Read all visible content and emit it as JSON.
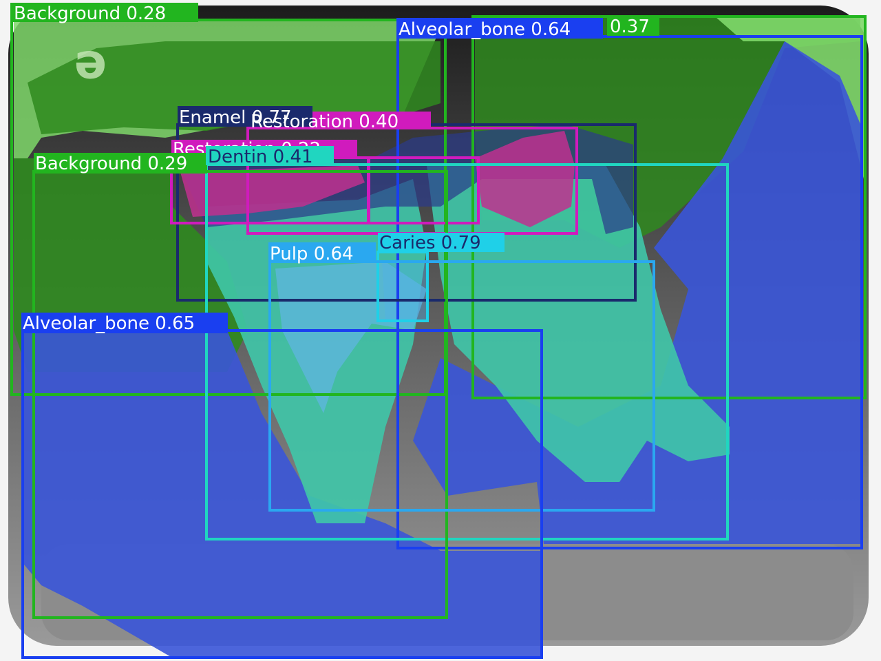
{
  "detections": [
    {
      "label": "Background 0.28",
      "color": "#22b51f"
    },
    {
      "label": "0.37",
      "color": "#22b51f"
    },
    {
      "label": "Alveolar_bone 0.64",
      "color": "#1a3ff0"
    },
    {
      "label": "Enamel 0.77",
      "color": "#1a2a6c"
    },
    {
      "label": "Restoration 0.40",
      "color": "#d01bbd"
    },
    {
      "label": "Restoration 0.22",
      "color": "#d01bbd"
    },
    {
      "label": "Dentin 0.41",
      "color": "#20d6c0"
    },
    {
      "label": "Background 0.29",
      "color": "#22b51f"
    },
    {
      "label": "Caries 0.79",
      "color": "#1fd0e8"
    },
    {
      "label": "Pulp 0.64",
      "color": "#2aa8f0"
    },
    {
      "label": "Alveolar_bone 0.65",
      "color": "#1a3ff0"
    }
  ],
  "colors": {
    "background_mask": "#2f8a1f",
    "background_mask_light": "#7fd86a",
    "alveolar_mask": "#3a55d8",
    "dentin_mask": "#3fc7a8",
    "restoration_mask": "#c0308f",
    "enamel_mask": "#2b3a8a",
    "xray_dark": "#141414",
    "xray_mid": "#6b6b6b",
    "xray_light": "#c9c9c9"
  }
}
